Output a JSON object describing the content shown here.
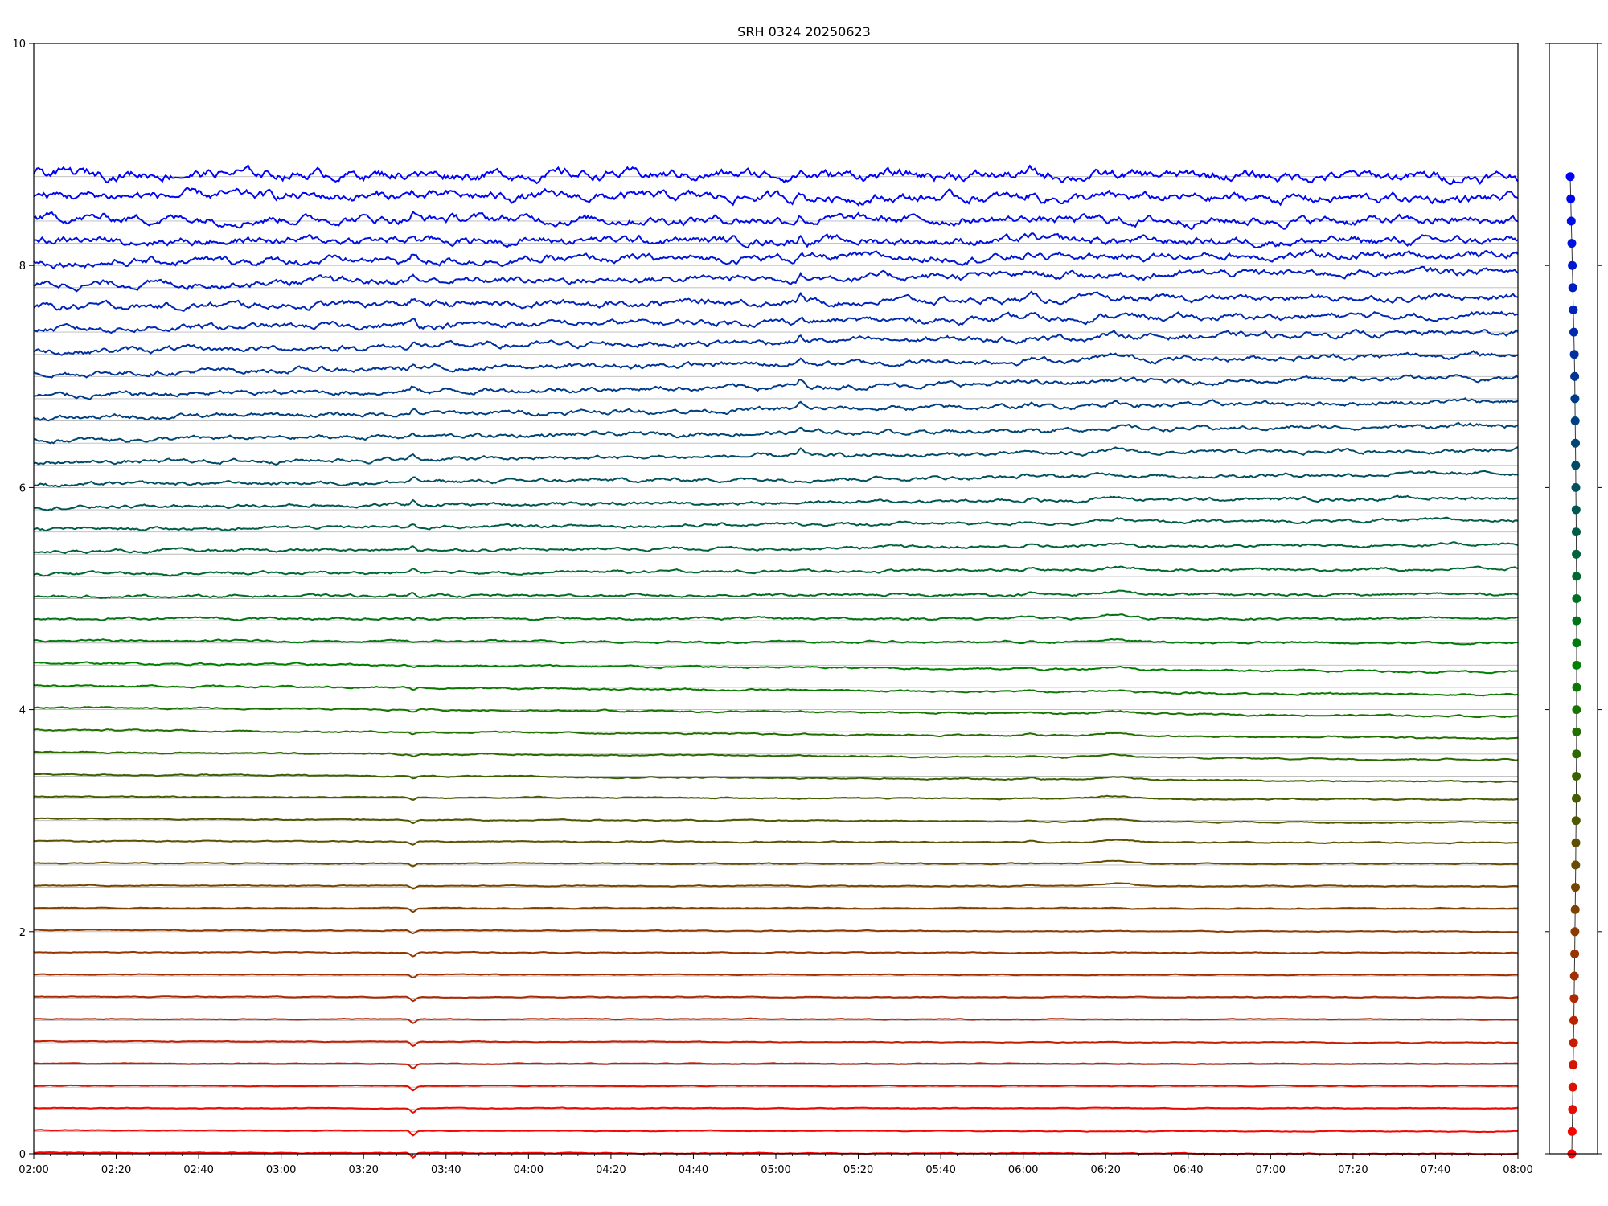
{
  "chart_data": {
    "type": "line",
    "title": "SRH 0324 20250623",
    "xlabel": "",
    "ylabel": "",
    "x_range": [
      "02:00",
      "08:00"
    ],
    "ylim": [
      0,
      10
    ],
    "x_tick_labels": [
      "02:00",
      "02:20",
      "02:40",
      "03:00",
      "03:20",
      "03:40",
      "04:00",
      "04:20",
      "04:40",
      "05:00",
      "05:20",
      "05:40",
      "06:00",
      "06:20",
      "06:40",
      "07:00",
      "07:20",
      "07:40",
      "08:00"
    ],
    "y_tick_labels": [
      "0",
      "2",
      "4",
      "6",
      "8",
      "10"
    ],
    "grid": false,
    "legend": "none",
    "color_gradient": {
      "bottom": "#ff0000",
      "middle": "#008000",
      "top": "#0000ff"
    },
    "series_baselines": [
      0.0,
      0.2,
      0.4,
      0.6,
      0.8,
      1.0,
      1.2,
      1.4,
      1.6,
      1.8,
      2.0,
      2.2,
      2.4,
      2.6,
      2.8,
      3.0,
      3.2,
      3.4,
      3.6,
      3.8,
      4.0,
      4.2,
      4.4,
      4.6,
      4.8,
      5.0,
      5.2,
      5.4,
      5.6,
      5.8,
      6.0,
      6.2,
      6.4,
      6.6,
      6.8,
      7.0,
      7.2,
      7.4,
      7.6,
      7.8,
      8.0,
      8.2,
      8.4,
      8.6,
      8.8
    ],
    "series_offsets_at_0800": [
      0.0,
      0.2,
      0.41,
      0.61,
      0.81,
      1.0,
      1.21,
      1.41,
      1.61,
      1.81,
      2.0,
      2.21,
      2.41,
      2.61,
      2.8,
      2.98,
      3.19,
      3.35,
      3.55,
      3.74,
      3.94,
      4.13,
      4.34,
      4.6,
      4.82,
      5.04,
      5.27,
      5.49,
      5.71,
      5.91,
      6.13,
      6.34,
      6.56,
      6.78,
      6.99,
      7.2,
      7.4,
      7.56,
      7.72,
      7.95,
      8.1,
      8.22,
      8.4,
      8.6,
      8.8
    ],
    "events": [
      {
        "time": "03:32",
        "description": "dip on lower channels, peak on upper channels"
      },
      {
        "time": "05:06",
        "description": "peak on upper channels"
      },
      {
        "time": "06:02",
        "description": "rise on middle and upper channels"
      },
      {
        "time": "06:22",
        "description": "broad bump on middle channels"
      }
    ],
    "side_panel": {
      "type": "scatter",
      "point_count": 45,
      "y_values": [
        0.0,
        0.2,
        0.4,
        0.6,
        0.8,
        1.0,
        1.2,
        1.4,
        1.6,
        1.8,
        2.0,
        2.2,
        2.4,
        2.6,
        2.8,
        3.0,
        3.2,
        3.4,
        3.6,
        3.8,
        4.0,
        4.2,
        4.4,
        4.6,
        4.8,
        5.0,
        5.2,
        5.4,
        5.6,
        5.8,
        6.0,
        6.2,
        6.4,
        6.6,
        6.8,
        7.0,
        7.2,
        7.4,
        7.6,
        7.8,
        8.0,
        8.2,
        8.4,
        8.6,
        8.8
      ]
    }
  }
}
